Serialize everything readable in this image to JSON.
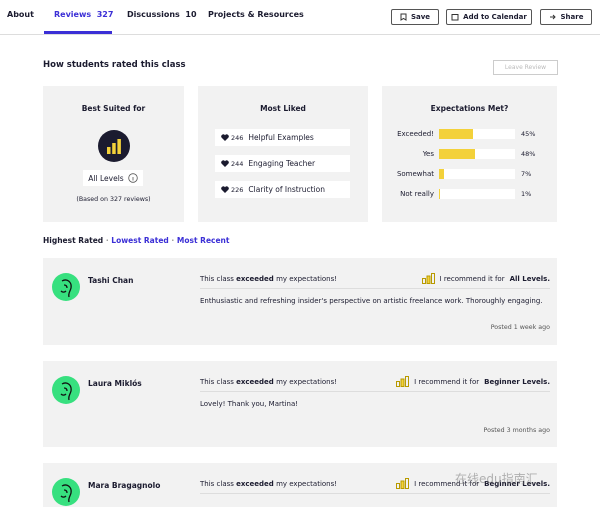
{
  "nav": {
    "tabs": [
      {
        "label": "About"
      },
      {
        "label": "Reviews",
        "count": "327"
      },
      {
        "label": "Discussions",
        "count": "10"
      },
      {
        "label": "Projects & Resources"
      }
    ],
    "buttons": [
      "Save",
      "Add to Calendar",
      "Share"
    ]
  },
  "ratings": {
    "title": "How students rated this class",
    "leave_review": "Leave Review",
    "best_suited": {
      "title": "Best Suited for",
      "level": "All Levels",
      "note": "(Based on 327 reviews)"
    },
    "most_liked": {
      "title": "Most Liked",
      "items": [
        {
          "count": "246",
          "label": "Helpful Examples"
        },
        {
          "count": "244",
          "label": "Engaging Teacher"
        },
        {
          "count": "226",
          "label": "Clarity of Instruction"
        }
      ]
    },
    "expectations": {
      "title": "Expectations Met?",
      "rows": [
        {
          "label": "Exceeded!",
          "value": 45,
          "value_label": "45%"
        },
        {
          "label": "Yes",
          "value": 48,
          "value_label": "48%"
        },
        {
          "label": "Somewhat",
          "value": 7,
          "value_label": "7%"
        },
        {
          "label": "Not really",
          "value": 1,
          "value_label": "1%"
        }
      ]
    }
  },
  "sort": [
    "Highest Rated",
    "Lowest Rated",
    "Most Recent"
  ],
  "reviews": [
    {
      "name": "Tashi Chan",
      "pre": "This class",
      "bold": "exceeded",
      "post": "my expectations!",
      "recommend": "I recommend it for",
      "level": "All Levels.",
      "text": "Enthusiastic and refreshing insider's perspective on artistic freelance work. Thoroughly engaging.",
      "posted": "Posted 1 week ago"
    },
    {
      "name": "Laura Miklós",
      "pre": "This class",
      "bold": "exceeded",
      "post": "my expectations!",
      "recommend": "I recommend it for",
      "level": "Beginner Levels.",
      "text": "Lovely! Thank you, Martina!",
      "posted": "Posted 3 months ago"
    },
    {
      "name": "Mara Bragagnolo",
      "pre": "This class",
      "bold": "exceeded",
      "post": "my expectations!",
      "recommend": "I recommend it for",
      "level": "Beginner Levels."
    }
  ],
  "watermark": "在线edu指南汇"
}
